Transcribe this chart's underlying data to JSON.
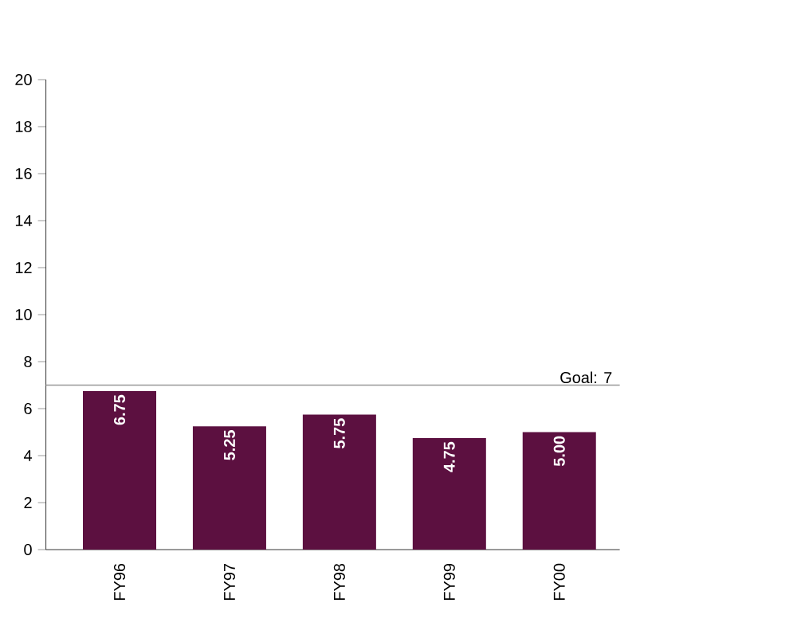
{
  "chart_data": {
    "type": "bar",
    "categories": [
      "FY96",
      "FY97",
      "FY98",
      "FY99",
      "FY00"
    ],
    "values": [
      6.75,
      5.25,
      5.75,
      4.75,
      5.0
    ],
    "value_labels": [
      "6.75",
      "5.25",
      "5.75",
      "4.75",
      "5.00"
    ],
    "color": "#5c1040",
    "ylim": [
      0,
      20
    ],
    "yticks": [
      0,
      2,
      4,
      6,
      8,
      10,
      12,
      14,
      16,
      18,
      20
    ],
    "ref_lines": [
      {
        "axis": "y",
        "value": 7,
        "label": "Goal: 7",
        "color": "#999999"
      }
    ]
  }
}
